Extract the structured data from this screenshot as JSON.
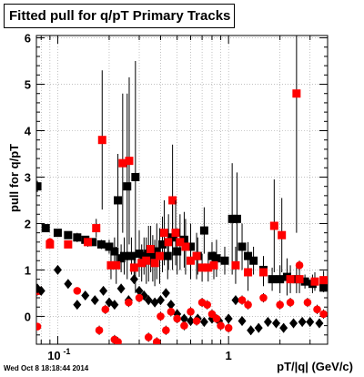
{
  "title": "Fitted pull for q/pT  Primary Tracks",
  "footer": {
    "datestamp": "Wed Oct  8 18:18:44 2014"
  },
  "colors": {
    "series_a": "#000000",
    "series_b": "#ff0000",
    "series_c": "#000000",
    "series_d": "#ff0000",
    "axes": "#000000",
    "grid": "#9a9a9a"
  },
  "chart_data": {
    "type": "scatter",
    "title": "Fitted pull for q/pT  Primary Tracks",
    "xlabel": "pT/|q| (GeV/c)",
    "ylabel": "pull for q/pT",
    "xscale": "log",
    "xlim": [
      0.075,
      3.8
    ],
    "ylim": [
      -0.6,
      6.05
    ],
    "grid": true,
    "x_ticks": [
      {
        "v": 0.1,
        "label": "10",
        "exp": "-1"
      },
      {
        "v": 1,
        "label": "1",
        "exp": ""
      }
    ],
    "y_ticks": [
      0,
      1,
      2,
      3,
      4,
      5,
      6
    ],
    "series": [
      {
        "marker": "square",
        "color": "#000000",
        "points": [
          [
            0.076,
            2.8,
            0.12
          ],
          [
            0.085,
            1.9,
            0.05
          ],
          [
            0.1,
            1.8,
            0.08
          ],
          [
            0.115,
            1.75,
            0.05
          ],
          [
            0.13,
            1.7,
            0.1
          ],
          [
            0.145,
            1.65,
            0.08
          ],
          [
            0.16,
            1.6,
            0.08
          ],
          [
            0.18,
            1.55,
            0.1
          ],
          [
            0.2,
            1.5,
            0.15
          ],
          [
            0.215,
            1.4,
            0.3
          ],
          [
            0.225,
            2.5,
            1.0
          ],
          [
            0.235,
            1.25,
            0.3
          ],
          [
            0.245,
            1.3,
            0.4
          ],
          [
            0.255,
            2.8,
            2.0
          ],
          [
            0.27,
            1.3,
            0.4
          ],
          [
            0.285,
            3.0,
            2.5
          ],
          [
            0.3,
            1.35,
            0.5
          ],
          [
            0.32,
            1.3,
            0.4
          ],
          [
            0.34,
            1.35,
            0.6
          ],
          [
            0.36,
            1.25,
            0.5
          ],
          [
            0.38,
            1.4,
            0.6
          ],
          [
            0.41,
            1.55,
            0.6
          ],
          [
            0.44,
            1.3,
            0.5
          ],
          [
            0.47,
            1.7,
            0.7
          ],
          [
            0.5,
            1.4,
            0.5
          ],
          [
            0.55,
            1.65,
            0.6
          ],
          [
            0.6,
            1.5,
            0.5
          ],
          [
            0.66,
            1.3,
            0.4
          ],
          [
            0.72,
            1.85,
            0.5
          ],
          [
            0.8,
            1.3,
            0.3
          ],
          [
            0.85,
            1.25,
            0.4
          ],
          [
            0.95,
            1.2,
            0.3
          ],
          [
            1.05,
            2.1,
            1.2
          ],
          [
            1.12,
            2.1,
            1.0
          ],
          [
            1.2,
            1.5,
            0.5
          ],
          [
            1.3,
            1.3,
            0.3
          ],
          [
            1.4,
            1.2,
            0.3
          ],
          [
            1.6,
            1.0,
            0.3
          ],
          [
            1.8,
            0.8,
            0.25
          ],
          [
            2.0,
            0.8,
            0.3
          ],
          [
            2.2,
            0.85,
            0.4
          ],
          [
            2.5,
            0.8,
            0.3
          ],
          [
            2.8,
            0.75,
            0.15
          ],
          [
            3.1,
            0.7,
            0.2
          ],
          [
            3.6,
            0.62,
            0.1
          ]
        ]
      },
      {
        "marker": "square",
        "color": "#ff0000",
        "points": [
          [
            0.076,
            0.55,
            0.1
          ],
          [
            0.09,
            1.55,
            0.05
          ],
          [
            0.115,
            1.55,
            0.05
          ],
          [
            0.15,
            1.6,
            0.1
          ],
          [
            0.168,
            1.9,
            0.2
          ],
          [
            0.182,
            3.8,
            1.5
          ],
          [
            0.205,
            1.1,
            0.3
          ],
          [
            0.22,
            1.1,
            0.4
          ],
          [
            0.24,
            3.3,
            1.5
          ],
          [
            0.262,
            3.35,
            1.8
          ],
          [
            0.28,
            1.05,
            0.3
          ],
          [
            0.31,
            1.15,
            0.4
          ],
          [
            0.33,
            1.2,
            0.5
          ],
          [
            0.35,
            1.45,
            0.5
          ],
          [
            0.37,
            1.15,
            0.5
          ],
          [
            0.395,
            1.3,
            0.6
          ],
          [
            0.42,
            1.8,
            0.7
          ],
          [
            0.445,
            1.6,
            0.6
          ],
          [
            0.47,
            2.5,
            1.2
          ],
          [
            0.49,
            1.8,
            0.7
          ],
          [
            0.52,
            1.6,
            0.6
          ],
          [
            0.56,
            1.5,
            0.6
          ],
          [
            0.6,
            1.2,
            0.4
          ],
          [
            0.65,
            1.3,
            0.5
          ],
          [
            0.7,
            1.05,
            0.3
          ],
          [
            0.76,
            1.05,
            0.3
          ],
          [
            0.82,
            1.1,
            0.3
          ],
          [
            1.1,
            1.1,
            0.4
          ],
          [
            1.3,
            0.95,
            0.4
          ],
          [
            1.6,
            0.95,
            0.3
          ],
          [
            1.85,
            1.95,
            1.0
          ],
          [
            2.05,
            1.75,
            0.8
          ],
          [
            2.3,
            0.8,
            0.3
          ],
          [
            2.6,
            0.8,
            0.3
          ],
          [
            2.5,
            4.8,
            3.0
          ],
          [
            3.2,
            0.75,
            0.2
          ],
          [
            3.6,
            0.78,
            0.2
          ]
        ]
      },
      {
        "marker": "diamond",
        "color": "#000000",
        "points": [
          [
            0.076,
            0.6,
            0.05
          ],
          [
            0.08,
            0.55,
            0.05
          ],
          [
            0.1,
            1.0,
            0.05
          ],
          [
            0.115,
            0.7,
            0.05
          ],
          [
            0.13,
            0.25,
            0.05
          ],
          [
            0.145,
            0.45,
            0.05
          ],
          [
            0.165,
            0.35,
            0.05
          ],
          [
            0.185,
            0.55,
            0.05
          ],
          [
            0.2,
            0.3,
            0.05
          ],
          [
            0.215,
            0.25,
            0.05
          ],
          [
            0.235,
            0.6,
            0.1
          ],
          [
            0.26,
            0.35,
            0.1
          ],
          [
            0.28,
            0.8,
            0.1
          ],
          [
            0.3,
            0.55,
            0.1
          ],
          [
            0.32,
            0.45,
            0.1
          ],
          [
            0.34,
            0.35,
            0.1
          ],
          [
            0.37,
            0.3,
            0.1
          ],
          [
            0.4,
            0.35,
            0.1
          ],
          [
            0.43,
            0.5,
            0.1
          ],
          [
            0.46,
            0.25,
            0.1
          ],
          [
            0.5,
            0.05,
            0.1
          ],
          [
            0.55,
            -0.05,
            0.1
          ],
          [
            0.6,
            -0.1,
            0.1
          ],
          [
            0.66,
            -0.05,
            0.1
          ],
          [
            0.72,
            -0.12,
            0.1
          ],
          [
            0.8,
            -0.05,
            0.1
          ],
          [
            0.88,
            -0.1,
            0.1
          ],
          [
            1.0,
            -0.05,
            0.1
          ],
          [
            1.1,
            0.35,
            0.1
          ],
          [
            1.2,
            -0.1,
            0.1
          ],
          [
            1.35,
            -0.3,
            0.1
          ],
          [
            1.5,
            -0.25,
            0.1
          ],
          [
            1.7,
            -0.12,
            0.1
          ],
          [
            1.9,
            -0.15,
            0.1
          ],
          [
            2.1,
            -0.25,
            0.1
          ],
          [
            2.4,
            -0.15,
            0.1
          ],
          [
            2.7,
            -0.12,
            0.1
          ],
          [
            3.0,
            -0.12,
            0.1
          ],
          [
            3.4,
            -0.15,
            0.1
          ]
        ]
      },
      {
        "marker": "circle",
        "color": "#ff0000",
        "points": [
          [
            0.076,
            -0.22,
            0.05
          ],
          [
            0.09,
            1.6,
            0.05
          ],
          [
            0.13,
            0.55,
            0.05
          ],
          [
            0.175,
            -0.3,
            0.1
          ],
          [
            0.19,
            0.15,
            0.1
          ],
          [
            0.215,
            -0.5,
            0.1
          ],
          [
            0.225,
            -0.55,
            0.1
          ],
          [
            0.26,
            0.3,
            0.1
          ],
          [
            0.3,
            0.4,
            0.1
          ],
          [
            0.34,
            -0.45,
            0.1
          ],
          [
            0.38,
            -0.55,
            0.1
          ],
          [
            0.4,
            0.0,
            0.1
          ],
          [
            0.43,
            -0.3,
            0.1
          ],
          [
            0.46,
            0.1,
            0.1
          ],
          [
            0.5,
            -0.05,
            0.1
          ],
          [
            0.55,
            -0.2,
            0.1
          ],
          [
            0.6,
            0.1,
            0.1
          ],
          [
            0.65,
            -0.1,
            0.1
          ],
          [
            0.7,
            0.3,
            0.1
          ],
          [
            0.75,
            0.25,
            0.1
          ],
          [
            0.8,
            0.05,
            0.1
          ],
          [
            0.85,
            -0.05,
            0.1
          ],
          [
            0.9,
            -0.2,
            0.1
          ],
          [
            1.0,
            -0.25,
            0.1
          ],
          [
            1.2,
            0.35,
            0.1
          ],
          [
            1.3,
            0.25,
            0.1
          ],
          [
            1.6,
            0.4,
            0.1
          ],
          [
            2.0,
            0.25,
            0.1
          ],
          [
            2.3,
            0.3,
            0.1
          ],
          [
            2.6,
            1.1,
            0.1
          ],
          [
            2.9,
            0.3,
            0.1
          ],
          [
            3.3,
            0.15,
            0.1
          ],
          [
            3.6,
            0.05,
            0.1
          ]
        ]
      }
    ]
  }
}
